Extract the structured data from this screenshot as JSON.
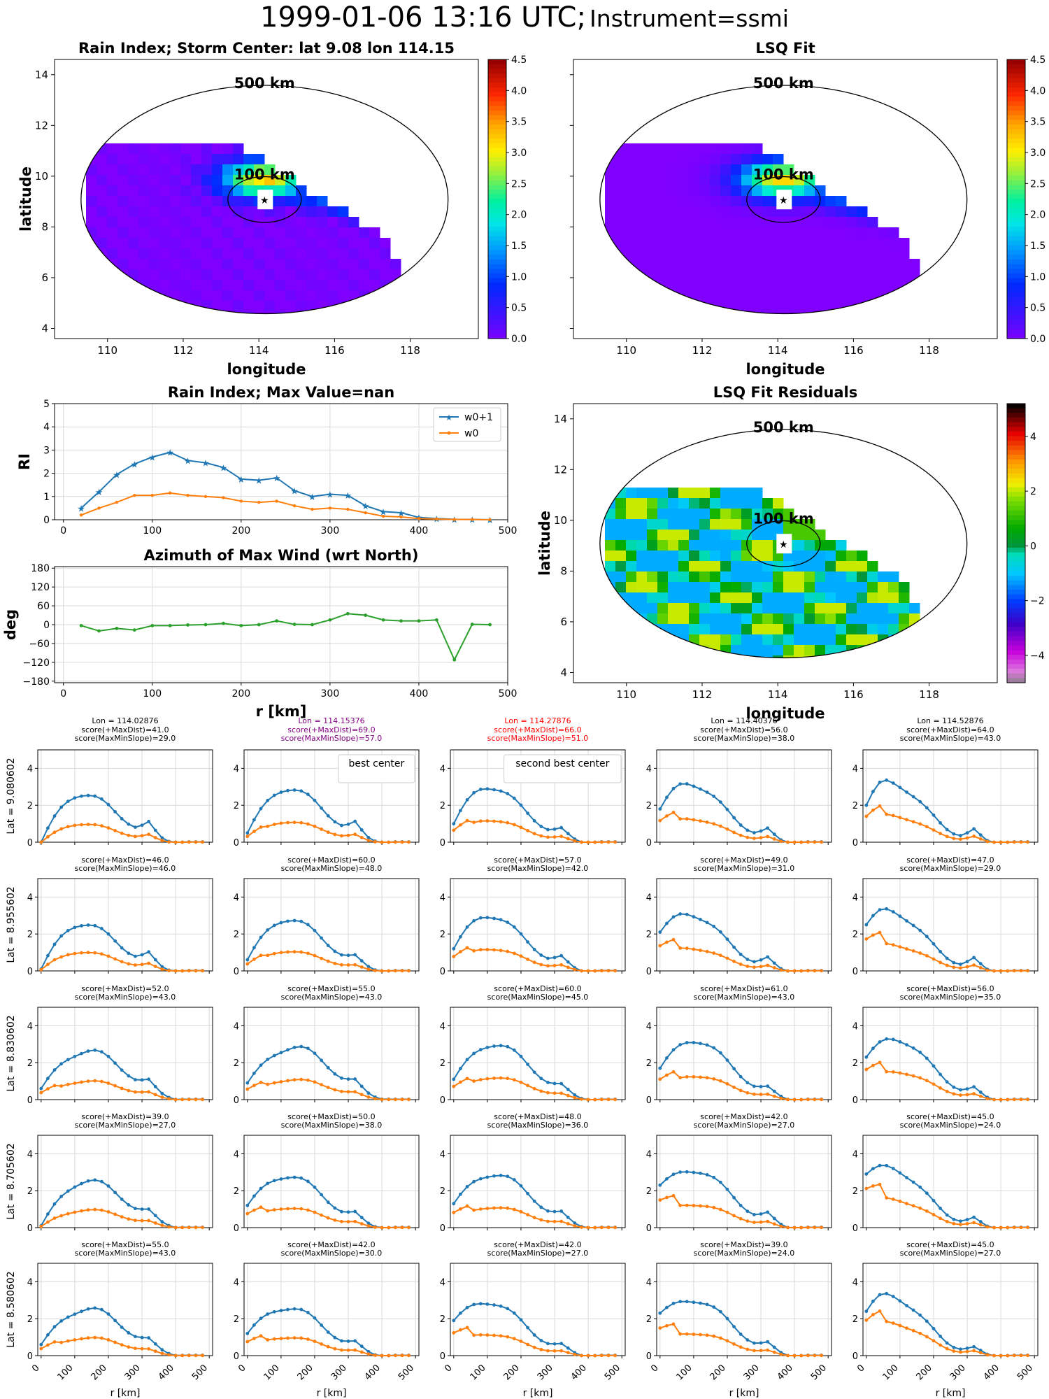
{
  "page": {
    "suptitle_main": "1999-01-06 13:16 UTC;",
    "suptitle_instrument": "Instrument=ssmi"
  },
  "colors": {
    "w0p1": "#1f77b4",
    "w0": "#ff7f0e",
    "azimuth": "#2ca02c",
    "best_center": "#800080",
    "second_best_center": "#ff0000",
    "grid": "#d9d9d9"
  },
  "maps": {
    "rain_index": {
      "title": "Rain Index; Storm Center: lat 9.08 lon 114.15",
      "xlabel": "longitude",
      "ylabel": "latitude",
      "xticks": [
        "110",
        "112",
        "114",
        "116",
        "118"
      ],
      "yticks": [
        "4",
        "6",
        "8",
        "10",
        "12",
        "14"
      ],
      "circle_labels": [
        "500 km",
        "100 km"
      ],
      "colorbar_ticks": [
        "0.0",
        "0.5",
        "1.0",
        "1.5",
        "2.0",
        "2.5",
        "3.0",
        "3.5",
        "4.0",
        "4.5"
      ],
      "colormap": "gist_rainbow-like (purple to red)"
    },
    "lsq_fit": {
      "title": "LSQ Fit",
      "xlabel": "longitude",
      "xticks": [
        "110",
        "112",
        "114",
        "116",
        "118"
      ],
      "circle_labels": [
        "500 km",
        "100 km"
      ],
      "colorbar_ticks": [
        "0.0",
        "0.5",
        "1.0",
        "1.5",
        "2.0",
        "2.5",
        "3.0",
        "3.5",
        "4.0",
        "4.5"
      ]
    },
    "residuals": {
      "title": "LSQ Fit Residuals",
      "xlabel": "longitude",
      "ylabel": "latitude",
      "xticks": [
        "110",
        "112",
        "114",
        "116",
        "118"
      ],
      "yticks": [
        "4",
        "6",
        "8",
        "10",
        "12",
        "14"
      ],
      "circle_labels": [
        "500 km",
        "100 km"
      ],
      "colorbar_ticks": [
        "−4",
        "−2",
        "0",
        "2",
        "4"
      ]
    }
  },
  "chart_data": [
    {
      "id": "rain_index_profile",
      "type": "line",
      "title": "Rain Index; Max Value=nan",
      "xlabel": "",
      "ylabel": "RI",
      "xlim": [
        -10,
        500
      ],
      "ylim": [
        0,
        5
      ],
      "xticks": [
        0,
        100,
        200,
        300,
        400,
        500
      ],
      "yticks": [
        0,
        1,
        2,
        3,
        4,
        5
      ],
      "legend_position": "top-right",
      "x": [
        20,
        40,
        60,
        80,
        100,
        120,
        140,
        160,
        180,
        200,
        220,
        240,
        260,
        280,
        300,
        320,
        340,
        360,
        380,
        400,
        420,
        440,
        460,
        480
      ],
      "series": [
        {
          "name": "w0+1",
          "values": [
            0.5,
            1.2,
            1.95,
            2.4,
            2.7,
            2.9,
            2.55,
            2.45,
            2.25,
            1.75,
            1.7,
            1.8,
            1.25,
            1.0,
            1.1,
            1.05,
            0.6,
            0.35,
            0.3,
            0.1,
            0.05,
            0.02,
            0.01,
            0.0
          ]
        },
        {
          "name": "w0",
          "values": [
            0.2,
            0.5,
            0.75,
            1.05,
            1.05,
            1.15,
            1.05,
            1.0,
            0.95,
            0.8,
            0.75,
            0.8,
            0.6,
            0.45,
            0.5,
            0.45,
            0.3,
            0.15,
            0.12,
            0.05,
            0.03,
            0.01,
            0.01,
            0.0
          ]
        }
      ]
    },
    {
      "id": "azimuth_max_wind",
      "type": "line",
      "title": "Azimuth of Max Wind (wrt North)",
      "xlabel": "r [km]",
      "ylabel": "deg",
      "xlim": [
        -10,
        500
      ],
      "ylim": [
        -185,
        185
      ],
      "xticks": [
        0,
        100,
        200,
        300,
        400,
        500
      ],
      "yticks": [
        -180,
        -120,
        -60,
        0,
        60,
        120,
        180
      ],
      "x": [
        20,
        40,
        60,
        80,
        100,
        120,
        140,
        160,
        180,
        200,
        220,
        240,
        260,
        280,
        300,
        320,
        340,
        360,
        380,
        400,
        420,
        440,
        460,
        480
      ],
      "series": [
        {
          "name": "",
          "values": [
            -3,
            -20,
            -12,
            -17,
            -3,
            -3,
            -1,
            0,
            4,
            -3,
            0,
            12,
            1,
            0,
            15,
            35,
            30,
            15,
            12,
            12,
            15,
            -112,
            1,
            0
          ]
        }
      ]
    },
    {
      "id": "grid_profiles",
      "type": "line",
      "xlabel": "r [km]",
      "xlim": [
        -10,
        510
      ],
      "ylim": [
        0,
        5
      ],
      "xticks": [
        0,
        100,
        200,
        300,
        400,
        500
      ],
      "yticks": [
        0,
        2,
        4
      ],
      "x": [
        0,
        20,
        40,
        60,
        80,
        100,
        120,
        140,
        160,
        180,
        200,
        220,
        240,
        260,
        280,
        300,
        320,
        340,
        360,
        380,
        400,
        420,
        440,
        460,
        480
      ],
      "columns": [
        {
          "lon_label": "Lon = 114.02876",
          "header_color": "#000000"
        },
        {
          "lon_label": "Lon = 114.15376",
          "header_color": "#800080"
        },
        {
          "lon_label": "Lon = 114.27876",
          "header_color": "#ff0000"
        },
        {
          "lon_label": "Lon = 114.40376",
          "header_color": "#000000"
        },
        {
          "lon_label": "Lon = 114.52876",
          "header_color": "#000000"
        }
      ],
      "rows": [
        {
          "lat_label": "Lat = 9.080602",
          "panels": [
            {
              "score_maxdist": "score(+MaxDist)=41.0",
              "score_slope": "score(MaxMinSlope)=29.0",
              "annotation": "",
              "peak_r": 120,
              "peak_val": 2.6,
              "ratio": 0.38,
              "start": 0.0,
              "secondary": 1.4
            },
            {
              "score_maxdist": "score(+MaxDist)=69.0",
              "score_slope": "score(MaxMinSlope)=57.0",
              "annotation": "best center",
              "peak_r": 120,
              "peak_val": 2.9,
              "ratio": 0.38,
              "start": 0.5,
              "secondary": 1.3
            },
            {
              "score_maxdist": "score(+MaxDist)=66.0",
              "score_slope": "score(MaxMinSlope)=51.0",
              "annotation": "second best center",
              "peak_r": 100,
              "peak_val": 3.0,
              "ratio": 0.4,
              "start": 1.0,
              "secondary": 0.8
            },
            {
              "score_maxdist": "score(+MaxDist)=56.0",
              "score_slope": "score(MaxMinSlope)=38.0",
              "annotation": "",
              "peak_r": 80,
              "peak_val": 3.2,
              "ratio": 0.4,
              "start": 1.8,
              "secondary": 1.0
            },
            {
              "score_maxdist": "score(+MaxDist)=64.0",
              "score_slope": "score(MaxMinSlope)=43.0",
              "annotation": "",
              "peak_r": 60,
              "peak_val": 3.3,
              "ratio": 0.45,
              "start": 2.0,
              "secondary": 1.1
            }
          ]
        },
        {
          "lat_label": "Lat = 8.955602",
          "panels": [
            {
              "score_maxdist": "score(+MaxDist)=46.0",
              "score_slope": "score(MaxMinSlope)=46.0",
              "annotation": "",
              "peak_r": 120,
              "peak_val": 2.55,
              "ratio": 0.4,
              "start": 0.1,
              "secondary": 1.2
            },
            {
              "score_maxdist": "score(+MaxDist)=60.0",
              "score_slope": "score(MaxMinSlope)=48.0",
              "annotation": "",
              "peak_r": 120,
              "peak_val": 2.8,
              "ratio": 0.38,
              "start": 0.6,
              "secondary": 0.7
            },
            {
              "score_maxdist": "score(+MaxDist)=57.0",
              "score_slope": "score(MaxMinSlope)=42.0",
              "annotation": "",
              "peak_r": 100,
              "peak_val": 3.0,
              "ratio": 0.4,
              "start": 1.2,
              "secondary": 0.9
            },
            {
              "score_maxdist": "score(+MaxDist)=49.0",
              "score_slope": "score(MaxMinSlope)=31.0",
              "annotation": "",
              "peak_r": 80,
              "peak_val": 3.1,
              "ratio": 0.4,
              "start": 2.1,
              "secondary": 1.0
            },
            {
              "score_maxdist": "score(+MaxDist)=47.0",
              "score_slope": "score(MaxMinSlope)=29.0",
              "annotation": "",
              "peak_r": 60,
              "peak_val": 3.3,
              "ratio": 0.44,
              "start": 2.5,
              "secondary": 1.1
            }
          ]
        },
        {
          "lat_label": "Lat = 8.830602",
          "panels": [
            {
              "score_maxdist": "score(+MaxDist)=52.0",
              "score_slope": "score(MaxMinSlope)=43.0",
              "annotation": "",
              "peak_r": 140,
              "peak_val": 2.65,
              "ratio": 0.38,
              "start": 0.6,
              "secondary": 0.9
            },
            {
              "score_maxdist": "score(+MaxDist)=55.0",
              "score_slope": "score(MaxMinSlope)=43.0",
              "annotation": "",
              "peak_r": 140,
              "peak_val": 2.85,
              "ratio": 0.38,
              "start": 0.9,
              "secondary": 0.8
            },
            {
              "score_maxdist": "score(+MaxDist)=60.0",
              "score_slope": "score(MaxMinSlope)=45.0",
              "annotation": "",
              "peak_r": 120,
              "peak_val": 3.0,
              "ratio": 0.4,
              "start": 1.1,
              "secondary": 0.6
            },
            {
              "score_maxdist": "score(+MaxDist)=61.0",
              "score_slope": "score(MaxMinSlope)=43.0",
              "annotation": "",
              "peak_r": 100,
              "peak_val": 3.2,
              "ratio": 0.4,
              "start": 1.7,
              "secondary": 0.6
            },
            {
              "score_maxdist": "score(+MaxDist)=56.0",
              "score_slope": "score(MaxMinSlope)=35.0",
              "annotation": "",
              "peak_r": 80,
              "peak_val": 3.3,
              "ratio": 0.46,
              "start": 2.3,
              "secondary": 0.8
            }
          ]
        },
        {
          "lat_label": "Lat = 8.705602",
          "panels": [
            {
              "score_maxdist": "score(+MaxDist)=39.0",
              "score_slope": "score(MaxMinSlope)=27.0",
              "annotation": "",
              "peak_r": 140,
              "peak_val": 2.55,
              "ratio": 0.38,
              "start": 0.1,
              "secondary": 0.7
            },
            {
              "score_maxdist": "score(+MaxDist)=50.0",
              "score_slope": "score(MaxMinSlope)=38.0",
              "annotation": "",
              "peak_r": 120,
              "peak_val": 2.8,
              "ratio": 0.38,
              "start": 1.2,
              "secondary": 0.7
            },
            {
              "score_maxdist": "score(+MaxDist)=48.0",
              "score_slope": "score(MaxMinSlope)=36.0",
              "annotation": "",
              "peak_r": 120,
              "peak_val": 2.9,
              "ratio": 0.38,
              "start": 1.3,
              "secondary": 0.7
            },
            {
              "score_maxdist": "score(+MaxDist)=42.0",
              "score_slope": "score(MaxMinSlope)=27.0",
              "annotation": "",
              "peak_r": 100,
              "peak_val": 3.1,
              "ratio": 0.4,
              "start": 2.3,
              "secondary": 0.9
            },
            {
              "score_maxdist": "score(+MaxDist)=45.0",
              "score_slope": "score(MaxMinSlope)=24.0",
              "annotation": "",
              "peak_r": 60,
              "peak_val": 3.3,
              "ratio": 0.48,
              "start": 2.9,
              "secondary": 0.7
            }
          ]
        },
        {
          "lat_label": "Lat = 8.580602",
          "panels": [
            {
              "score_maxdist": "score(+MaxDist)=55.0",
              "score_slope": "score(MaxMinSlope)=43.0",
              "annotation": "",
              "peak_r": 140,
              "peak_val": 2.55,
              "ratio": 0.38,
              "start": 0.6,
              "secondary": 0.6
            },
            {
              "score_maxdist": "score(+MaxDist)=42.0",
              "score_slope": "score(MaxMinSlope)=30.0",
              "annotation": "",
              "peak_r": 120,
              "peak_val": 2.6,
              "ratio": 0.38,
              "start": 1.2,
              "secondary": 0.6
            },
            {
              "score_maxdist": "score(+MaxDist)=42.0",
              "score_slope": "score(MaxMinSlope)=27.0",
              "annotation": "",
              "peak_r": 100,
              "peak_val": 2.9,
              "ratio": 0.4,
              "start": 1.9,
              "secondary": 0.5
            },
            {
              "score_maxdist": "score(+MaxDist)=39.0",
              "score_slope": "score(MaxMinSlope)=24.0",
              "annotation": "",
              "peak_r": 100,
              "peak_val": 3.0,
              "ratio": 0.4,
              "start": 2.3,
              "secondary": 0.7
            },
            {
              "score_maxdist": "score(+MaxDist)=45.0",
              "score_slope": "score(MaxMinSlope)=27.0",
              "annotation": "",
              "peak_r": 60,
              "peak_val": 3.3,
              "ratio": 0.55,
              "start": 2.4,
              "secondary": 0.5
            }
          ]
        }
      ]
    }
  ]
}
